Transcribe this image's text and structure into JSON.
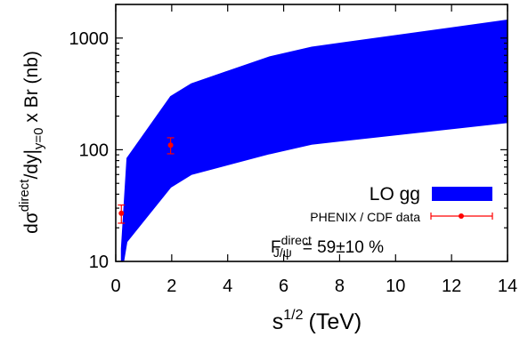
{
  "chart_data": {
    "type": "area",
    "xlabel_base": "s",
    "xlabel_sup": "1/2",
    "xlabel_unit": "(TeV)",
    "ylabel": {
      "pre": "dσ",
      "sup1": "direct",
      "mid": "/dy|",
      "sub": "y=0",
      "post": " x Br (nb)"
    },
    "xlim": [
      0,
      14
    ],
    "ylim": [
      10,
      2000
    ],
    "yscale": "log",
    "x_ticks": [
      0,
      2,
      4,
      6,
      8,
      10,
      12,
      14
    ],
    "x_tick_labels": [
      "0",
      "2",
      "4",
      "6",
      "8",
      "10",
      "12",
      "14"
    ],
    "y_ticks": [
      10,
      100,
      1000
    ],
    "y_tick_labels": [
      "10",
      "100",
      "1000"
    ],
    "band": {
      "name": "LO gg",
      "color": "#0000ff",
      "x": [
        0.2,
        0.4,
        1.96,
        2.7,
        5.5,
        7.0,
        14.0
      ],
      "lower": [
        7.5,
        15,
        46,
        60,
        92,
        112,
        175
      ],
      "upper": [
        13,
        84,
        300,
        390,
        680,
        830,
        1450
      ]
    },
    "data": {
      "name": "PHENIX / CDF data",
      "color": "#ff0000",
      "points": [
        {
          "x": 0.2,
          "y": 27,
          "err_low": 5,
          "err_high": 5
        },
        {
          "x": 1.96,
          "y": 110,
          "err_low": 18,
          "err_high": 18
        }
      ]
    },
    "annotation": {
      "base": "F",
      "sup": "direct",
      "sub": "J/ψ",
      "value": "= 59±10 %"
    },
    "legend_position": "bottom-right",
    "grid": false
  }
}
